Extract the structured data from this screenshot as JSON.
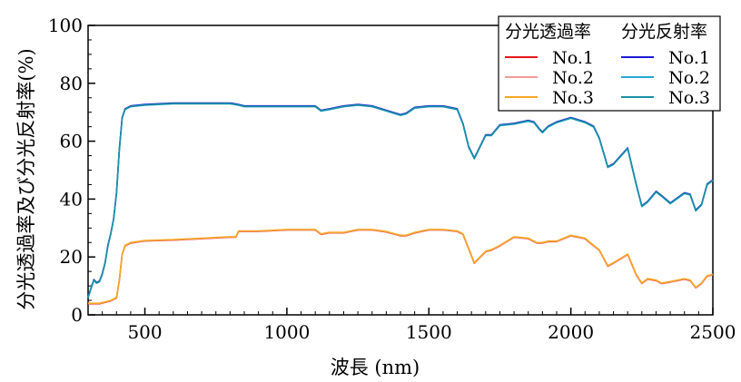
{
  "chart_data": {
    "type": "line",
    "xlabel": "波長 (nm)",
    "ylabel": "分光透過率及び分光反射率(%)",
    "xlim": [
      300,
      2500
    ],
    "ylim": [
      0,
      100
    ],
    "x_ticks": [
      500,
      1000,
      1500,
      2000,
      2500
    ],
    "y_ticks": [
      0,
      20,
      40,
      60,
      80,
      100
    ],
    "grid": false,
    "legend": {
      "placement": "top-right",
      "groups": [
        {
          "title": "分光透過率",
          "entries": [
            "No.1",
            "No.2",
            "No.3"
          ]
        },
        {
          "title": "分光反射率",
          "entries": [
            "No.1",
            "No.2",
            "No.3"
          ]
        }
      ]
    },
    "colors": {
      "trans_no1": "#e8141b",
      "trans_no2": "#f29a9a",
      "trans_no3": "#f5a623",
      "refl_no1": "#1a1ad6",
      "refl_no2": "#22a8d8",
      "refl_no3": "#1a8fa6"
    },
    "series": [
      {
        "name": "分光透過率 No.3",
        "group": "transmittance",
        "x": [
          300,
          320,
          340,
          360,
          380,
          400,
          410,
          420,
          430,
          450,
          500,
          600,
          700,
          800,
          820,
          830,
          900,
          1000,
          1050,
          1100,
          1120,
          1150,
          1200,
          1250,
          1300,
          1350,
          1400,
          1420,
          1450,
          1500,
          1550,
          1600,
          1620,
          1640,
          1660,
          1670,
          1700,
          1720,
          1750,
          1800,
          1850,
          1880,
          1900,
          1920,
          1950,
          2000,
          2050,
          2080,
          2100,
          2130,
          2150,
          2200,
          2230,
          2250,
          2270,
          2300,
          2320,
          2350,
          2400,
          2420,
          2440,
          2460,
          2480,
          2500
        ],
        "y": [
          4,
          4,
          4,
          4.5,
          5,
          6,
          12,
          21,
          24,
          25,
          25.7,
          26,
          26.5,
          27,
          27,
          29,
          29,
          29.5,
          29.5,
          29.5,
          28,
          28.5,
          28.5,
          29.5,
          29.5,
          28.8,
          27.5,
          27.5,
          28.5,
          29.5,
          29.5,
          29,
          28,
          23,
          18,
          19,
          22,
          22.5,
          24,
          27,
          26.5,
          25,
          25,
          25.5,
          25.5,
          27.5,
          26.5,
          24,
          22.5,
          17,
          18,
          21,
          14,
          11,
          12.5,
          12,
          11,
          11.5,
          12.5,
          12,
          9.5,
          11,
          13.5,
          14
        ]
      },
      {
        "name": "分光反射率 No.3",
        "group": "reflectance",
        "x": [
          300,
          310,
          320,
          330,
          340,
          350,
          360,
          370,
          380,
          390,
          400,
          410,
          420,
          430,
          450,
          500,
          600,
          700,
          800,
          830,
          850,
          900,
          1000,
          1050,
          1100,
          1120,
          1150,
          1200,
          1250,
          1300,
          1350,
          1400,
          1420,
          1450,
          1500,
          1550,
          1600,
          1620,
          1640,
          1660,
          1670,
          1700,
          1720,
          1750,
          1800,
          1850,
          1870,
          1890,
          1900,
          1920,
          1950,
          2000,
          2050,
          2080,
          2100,
          2130,
          2150,
          2200,
          2230,
          2250,
          2270,
          2300,
          2320,
          2350,
          2400,
          2420,
          2440,
          2460,
          2480,
          2500
        ],
        "y": [
          6,
          9,
          12,
          11,
          11.5,
          14,
          18,
          24,
          28,
          33,
          42,
          57,
          68,
          71,
          72,
          72.5,
          73,
          73,
          73,
          72.5,
          72,
          72,
          72,
          72,
          72,
          70.5,
          71,
          72,
          72.5,
          72,
          70.5,
          69,
          69.5,
          71.5,
          72,
          72,
          71,
          66,
          58,
          54,
          56,
          62,
          62,
          65.5,
          66,
          67,
          66.5,
          64,
          63,
          65,
          66.5,
          68,
          66.5,
          65,
          61,
          51,
          52,
          57.5,
          45,
          37.5,
          39,
          42.5,
          41,
          38.5,
          42,
          41.5,
          36,
          38,
          45,
          46.5
        ]
      }
    ]
  }
}
